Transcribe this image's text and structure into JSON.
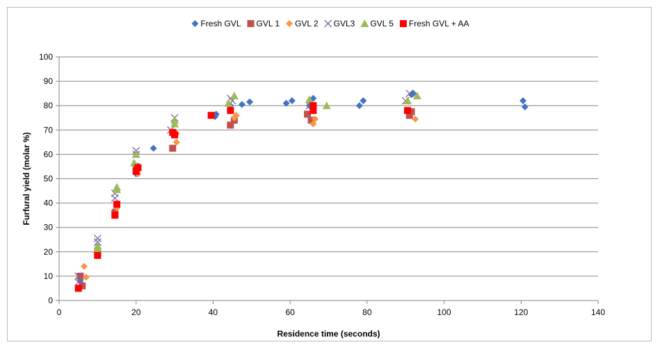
{
  "chart_data": {
    "type": "scatter",
    "xlabel": "Residence time (seconds)",
    "ylabel": "Furfural yield (molar %)",
    "xlim": [
      0,
      140
    ],
    "ylim": [
      0,
      100
    ],
    "x_ticks": [
      0,
      20,
      40,
      60,
      80,
      100,
      120,
      140
    ],
    "y_ticks": [
      0,
      10,
      20,
      30,
      40,
      50,
      60,
      70,
      80,
      90,
      100
    ],
    "grid": "horizontal",
    "legend_position": "top",
    "series": [
      {
        "name": "Fresh GVL",
        "marker": "diamond",
        "color": "#4472c4",
        "points": [
          [
            5,
            5
          ],
          [
            5.5,
            8
          ],
          [
            10,
            19
          ],
          [
            14.5,
            37
          ],
          [
            20,
            52
          ],
          [
            24.5,
            62.5
          ],
          [
            30,
            69
          ],
          [
            40.5,
            75.5
          ],
          [
            40.8,
            76.5
          ],
          [
            44.5,
            80
          ],
          [
            47.5,
            80.5
          ],
          [
            49.5,
            81.5
          ],
          [
            59,
            81
          ],
          [
            60.5,
            82
          ],
          [
            65,
            80
          ],
          [
            66,
            83
          ],
          [
            78,
            80
          ],
          [
            79,
            82
          ],
          [
            91.5,
            84.5
          ],
          [
            92,
            85
          ],
          [
            120.5,
            82
          ],
          [
            121,
            79.5
          ]
        ]
      },
      {
        "name": "GVL 1",
        "marker": "square",
        "color": "#c0504d",
        "points": [
          [
            5.5,
            10
          ],
          [
            6,
            6
          ],
          [
            10,
            19.5
          ],
          [
            14.5,
            36
          ],
          [
            20,
            55
          ],
          [
            29.5,
            62.5
          ],
          [
            44.5,
            72
          ],
          [
            45.5,
            74
          ],
          [
            64.5,
            76.5
          ],
          [
            65.5,
            74
          ],
          [
            91,
            76
          ],
          [
            91.5,
            77.5
          ]
        ]
      },
      {
        "name": "GVL 2",
        "marker": "diamond",
        "color": "#f79646",
        "points": [
          [
            6.5,
            14
          ],
          [
            7,
            9.5
          ],
          [
            10,
            20
          ],
          [
            15,
            38
          ],
          [
            20.5,
            52
          ],
          [
            30.5,
            65
          ],
          [
            30.5,
            68.5
          ],
          [
            45.5,
            75
          ],
          [
            46,
            76
          ],
          [
            66,
            72.5
          ],
          [
            66.5,
            74.5
          ],
          [
            92.5,
            74.5
          ]
        ]
      },
      {
        "name": "GVL3",
        "marker": "x",
        "color": "#8064a2",
        "points": [
          [
            5,
            7.5
          ],
          [
            5,
            10
          ],
          [
            10,
            24
          ],
          [
            10,
            25.5
          ],
          [
            14.5,
            42
          ],
          [
            14.5,
            44
          ],
          [
            20,
            60
          ],
          [
            20,
            61.5
          ],
          [
            29,
            70
          ],
          [
            30,
            75
          ],
          [
            44.5,
            83
          ],
          [
            45,
            82
          ],
          [
            65,
            80
          ],
          [
            90,
            82
          ],
          [
            91,
            85
          ]
        ]
      },
      {
        "name": "GVL 5",
        "marker": "triangle",
        "color": "#9bbb59",
        "points": [
          [
            10,
            21
          ],
          [
            10,
            22.5
          ],
          [
            15,
            46.5
          ],
          [
            15,
            45.5
          ],
          [
            19.5,
            56.5
          ],
          [
            20,
            60
          ],
          [
            30,
            72.5
          ],
          [
            30,
            74
          ],
          [
            44,
            81
          ],
          [
            45.5,
            84
          ],
          [
            65,
            82.5
          ],
          [
            69.5,
            80
          ],
          [
            90.5,
            82
          ],
          [
            93,
            84
          ]
        ]
      },
      {
        "name": "Fresh GVL + AA",
        "marker": "square",
        "color": "#ff0000",
        "points": [
          [
            5,
            5
          ],
          [
            10,
            18.5
          ],
          [
            14.5,
            35
          ],
          [
            15,
            39.5
          ],
          [
            20,
            53
          ],
          [
            20.5,
            54.5
          ],
          [
            29.5,
            69
          ],
          [
            30,
            68
          ],
          [
            39.5,
            76
          ],
          [
            44.5,
            78
          ],
          [
            66,
            78
          ],
          [
            66,
            80
          ],
          [
            90.5,
            78
          ]
        ]
      }
    ]
  }
}
